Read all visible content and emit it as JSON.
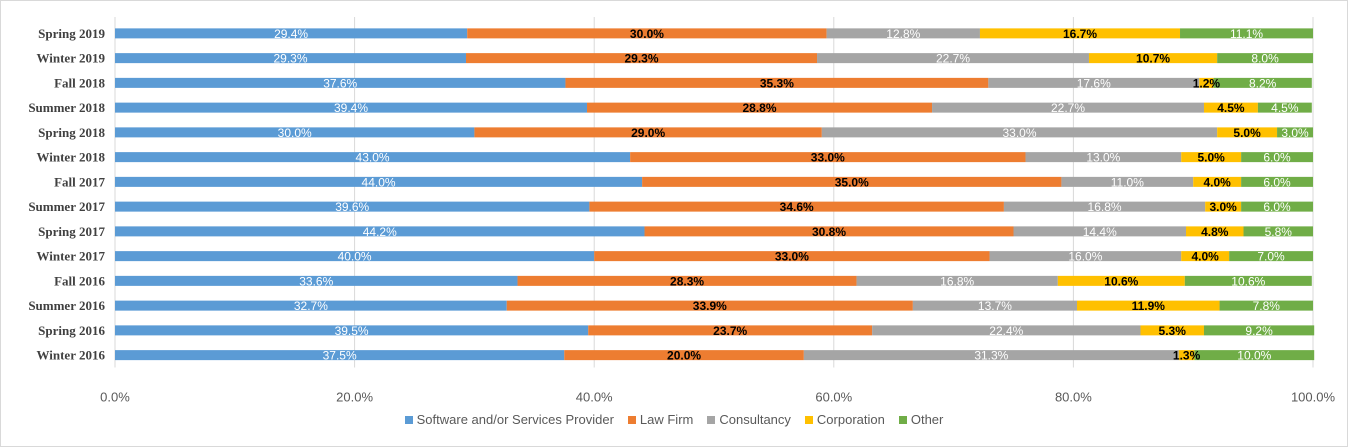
{
  "chart_data": {
    "type": "bar",
    "orientation": "horizontal",
    "stacked": true,
    "categories": [
      "Spring 2019",
      "Winter 2019",
      "Fall 2018",
      "Summer 2018",
      "Spring 2018",
      "Winter 2018",
      "Fall 2017",
      "Summer 2017",
      "Spring 2017",
      "Winter 2017",
      "Fall 2016",
      "Summer 2016",
      "Spring 2016",
      "Winter 2016"
    ],
    "series": [
      {
        "name": "Software and/or Services Provider",
        "color": "#5b9bd5",
        "label_color": "#ffffff",
        "values": [
          29.4,
          29.3,
          37.6,
          39.4,
          30.0,
          43.0,
          44.0,
          39.6,
          44.2,
          40.0,
          33.6,
          32.7,
          39.5,
          37.5
        ]
      },
      {
        "name": "Law Firm",
        "color": "#ed7d31",
        "label_color": "#000000",
        "values": [
          30.0,
          29.3,
          35.3,
          28.8,
          29.0,
          33.0,
          35.0,
          34.6,
          30.8,
          33.0,
          28.3,
          33.9,
          23.7,
          20.0
        ]
      },
      {
        "name": "Consultancy",
        "color": "#a5a5a5",
        "label_color": "#ffffff",
        "values": [
          12.8,
          22.7,
          17.6,
          22.7,
          33.0,
          13.0,
          11.0,
          16.8,
          14.4,
          16.0,
          16.8,
          13.7,
          22.4,
          31.3
        ]
      },
      {
        "name": "Corporation",
        "color": "#ffc000",
        "label_color": "#000000",
        "values": [
          16.7,
          10.7,
          1.2,
          4.5,
          5.0,
          5.0,
          4.0,
          3.0,
          4.8,
          4.0,
          10.6,
          11.9,
          5.3,
          1.3
        ]
      },
      {
        "name": "Other",
        "color": "#70ad47",
        "label_color": "#ffffff",
        "values": [
          11.1,
          8.0,
          8.2,
          4.5,
          3.0,
          6.0,
          6.0,
          6.0,
          5.8,
          7.0,
          10.6,
          7.8,
          9.2,
          10.0
        ]
      }
    ],
    "xlim": [
      0,
      100
    ],
    "x_ticks": [
      "0.0%",
      "20.0%",
      "40.0%",
      "60.0%",
      "80.0%",
      "100.0%"
    ],
    "x_tick_values": [
      0,
      20,
      40,
      60,
      80,
      100
    ],
    "value_suffix": "%",
    "value_decimals": 1,
    "grid": "vertical",
    "legend_position": "bottom",
    "title": "",
    "xlabel": "",
    "ylabel": ""
  }
}
